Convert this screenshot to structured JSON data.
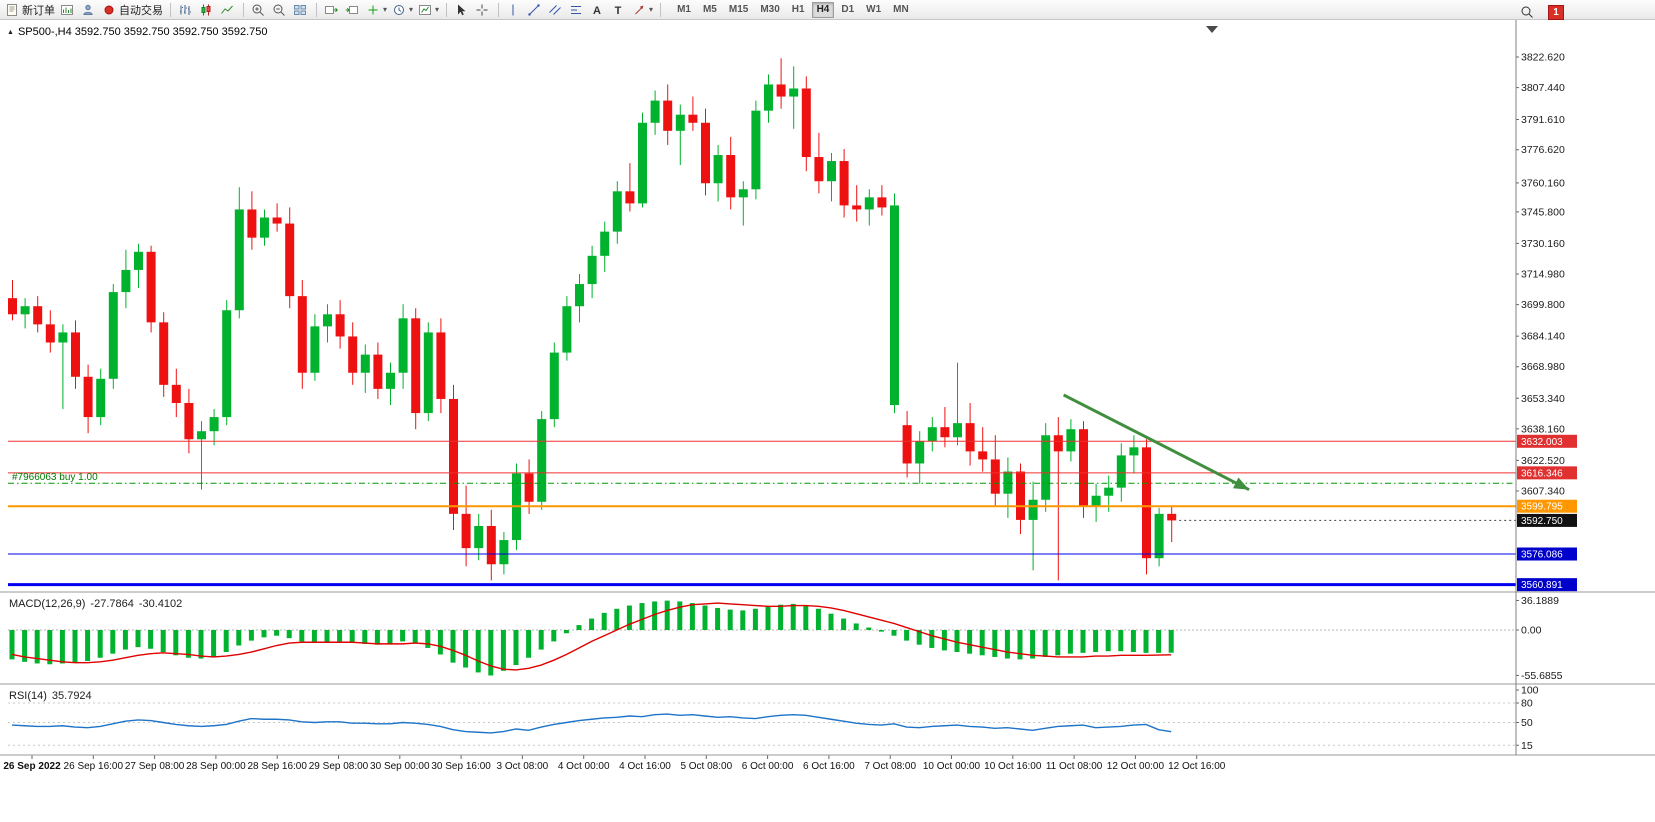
{
  "toolbar": {
    "new_order": "新订单",
    "autotrading": "自动交易",
    "timeframes": [
      "M1",
      "M5",
      "M15",
      "M30",
      "H1",
      "H4",
      "D1",
      "W1",
      "MN"
    ],
    "active_timeframe": "H4",
    "notification_count": "1",
    "icons": {
      "new-order": "order-ticket",
      "charts": "chart-window",
      "experts": "user",
      "autotrading": "red-dot",
      "bar-chart": "bars",
      "candlestick-chart": "candles",
      "line-chart": "polyline",
      "zoom-in": "magnifier-plus",
      "zoom-out": "magnifier-minus",
      "tile-windows": "grid",
      "auto-scroll": "chart-arrow-right",
      "chart-shift": "chart-arrow-left",
      "indicators": "green-plus",
      "periods": "clock",
      "templates": "chart-template",
      "cursor": "pointer-arrow",
      "crosshair": "cross",
      "vertical-line": "vline",
      "trendline": "diagonal-line",
      "channel": "parallel-lines",
      "fibonacci": "fibo-lines",
      "text": "A",
      "text-label": "T",
      "arrows": "arrow",
      "search": "magnifier"
    }
  },
  "chart": {
    "symbol_info": "SP500-,H4 3592.750 3592.750 3592.750 3592.750",
    "trade_label": "#7966063 buy 1.00"
  },
  "chart_data": {
    "type": "candlestick",
    "symbol": "SP500-",
    "timeframe": "H4",
    "colors": {
      "up": "#00B22D",
      "down": "#EE1111",
      "macd": "#00B22D",
      "signal": "#E00000",
      "rsi": "#1E74C8",
      "buy_line": "#009900",
      "arrow": "#3F8F3F"
    },
    "ohlc": [
      [
        3703,
        3712,
        3692,
        3695
      ],
      [
        3695,
        3703,
        3688,
        3699
      ],
      [
        3699,
        3704,
        3686,
        3690
      ],
      [
        3690,
        3697,
        3676,
        3681
      ],
      [
        3681,
        3690,
        3648,
        3686
      ],
      [
        3686,
        3692,
        3658,
        3664
      ],
      [
        3664,
        3670,
        3636,
        3644
      ],
      [
        3644,
        3668,
        3640,
        3663
      ],
      [
        3663,
        3710,
        3658,
        3706
      ],
      [
        3706,
        3727,
        3698,
        3717
      ],
      [
        3717,
        3730,
        3708,
        3726
      ],
      [
        3726,
        3729,
        3686,
        3691
      ],
      [
        3691,
        3696,
        3654,
        3660
      ],
      [
        3660,
        3668,
        3644,
        3651
      ],
      [
        3651,
        3658,
        3626,
        3633
      ],
      [
        3633,
        3642,
        3608,
        3637
      ],
      [
        3637,
        3648,
        3630,
        3644
      ],
      [
        3644,
        3702,
        3640,
        3697
      ],
      [
        3697,
        3758,
        3693,
        3747
      ],
      [
        3747,
        3756,
        3727,
        3733
      ],
      [
        3733,
        3747,
        3729,
        3743
      ],
      [
        3743,
        3750,
        3736,
        3740
      ],
      [
        3740,
        3748,
        3698,
        3704
      ],
      [
        3704,
        3712,
        3658,
        3666
      ],
      [
        3666,
        3695,
        3662,
        3689
      ],
      [
        3689,
        3700,
        3681,
        3695
      ],
      [
        3695,
        3702,
        3678,
        3684
      ],
      [
        3684,
        3691,
        3660,
        3666
      ],
      [
        3666,
        3680,
        3656,
        3675
      ],
      [
        3675,
        3681,
        3653,
        3658
      ],
      [
        3658,
        3671,
        3650,
        3666
      ],
      [
        3666,
        3700,
        3658,
        3693
      ],
      [
        3693,
        3698,
        3638,
        3646
      ],
      [
        3646,
        3691,
        3642,
        3686
      ],
      [
        3686,
        3693,
        3646,
        3653
      ],
      [
        3653,
        3660,
        3588,
        3596
      ],
      [
        3596,
        3610,
        3570,
        3579
      ],
      [
        3579,
        3596,
        3573,
        3590
      ],
      [
        3590,
        3598,
        3563,
        3571
      ],
      [
        3571,
        3587,
        3566,
        3583
      ],
      [
        3583,
        3621,
        3578,
        3616
      ],
      [
        3616,
        3623,
        3596,
        3602
      ],
      [
        3602,
        3647,
        3598,
        3643
      ],
      [
        3643,
        3681,
        3639,
        3676
      ],
      [
        3676,
        3704,
        3672,
        3699
      ],
      [
        3699,
        3715,
        3691,
        3710
      ],
      [
        3710,
        3729,
        3703,
        3724
      ],
      [
        3724,
        3741,
        3716,
        3736
      ],
      [
        3736,
        3761,
        3730,
        3756
      ],
      [
        3756,
        3770,
        3746,
        3750
      ],
      [
        3750,
        3795,
        3748,
        3790
      ],
      [
        3790,
        3806,
        3784,
        3801
      ],
      [
        3801,
        3809,
        3779,
        3786
      ],
      [
        3786,
        3799,
        3769,
        3794
      ],
      [
        3794,
        3803,
        3786,
        3790
      ],
      [
        3790,
        3797,
        3754,
        3760
      ],
      [
        3760,
        3779,
        3751,
        3774
      ],
      [
        3774,
        3783,
        3747,
        3753
      ],
      [
        3753,
        3761,
        3739,
        3757
      ],
      [
        3757,
        3801,
        3752,
        3796
      ],
      [
        3796,
        3814,
        3790,
        3809
      ],
      [
        3809,
        3822,
        3797,
        3803
      ],
      [
        3803,
        3818,
        3787,
        3807
      ],
      [
        3807,
        3813,
        3766,
        3773
      ],
      [
        3773,
        3785,
        3755,
        3761
      ],
      [
        3761,
        3775,
        3751,
        3771
      ],
      [
        3771,
        3777,
        3743,
        3749
      ],
      [
        3749,
        3759,
        3741,
        3747
      ],
      [
        3747,
        3757,
        3739,
        3753
      ],
      [
        3753,
        3759,
        3744,
        3748
      ],
      [
        3650,
        3755,
        3646,
        3749
      ],
      [
        3640,
        3647,
        3614,
        3621
      ],
      [
        3621,
        3637,
        3611,
        3632
      ],
      [
        3632,
        3644,
        3627,
        3639
      ],
      [
        3639,
        3649,
        3629,
        3634
      ],
      [
        3634,
        3671,
        3630,
        3641
      ],
      [
        3641,
        3651,
        3620,
        3627
      ],
      [
        3627,
        3639,
        3617,
        3623
      ],
      [
        3623,
        3635,
        3600,
        3606
      ],
      [
        3606,
        3624,
        3594,
        3617
      ],
      [
        3617,
        3621,
        3586,
        3593
      ],
      [
        3593,
        3612,
        3568,
        3603
      ],
      [
        3603,
        3641,
        3597,
        3635
      ],
      [
        3635,
        3644,
        3563,
        3627
      ],
      [
        3627,
        3643,
        3622,
        3638
      ],
      [
        3638,
        3642,
        3594,
        3600
      ],
      [
        3600,
        3611,
        3592,
        3605
      ],
      [
        3605,
        3615,
        3597,
        3609
      ],
      [
        3609,
        3631,
        3602,
        3625
      ],
      [
        3625,
        3635,
        3616,
        3629
      ],
      [
        3629,
        3633,
        3566,
        3574
      ],
      [
        3574,
        3599,
        3570,
        3596
      ],
      [
        3596,
        3600,
        3582,
        3592.75
      ]
    ],
    "price_axis_labels": [
      "3822.620",
      "3807.440",
      "3791.610",
      "3776.620",
      "3760.160",
      "3745.800",
      "3730.160",
      "3714.980",
      "3699.800",
      "3684.140",
      "3668.980",
      "3653.340",
      "3638.160",
      "3622.520",
      "3607.340"
    ],
    "price_lines": [
      {
        "price": 3632.003,
        "label": "3632.003",
        "color": "#F03030",
        "badge": "#E03030",
        "width": 1,
        "dash": "",
        "name": "resistance-line-1"
      },
      {
        "price": 3616.346,
        "label": "3616.346",
        "color": "#F03030",
        "badge": "#E03030",
        "width": 1,
        "dash": "",
        "name": "resistance-line-2"
      },
      {
        "price": 3611.2,
        "label": "",
        "color": "#009900",
        "badge": "",
        "width": 1,
        "dash": "6 3 1.5 3",
        "name": "buy-order-line"
      },
      {
        "price": 3599.795,
        "label": "3599.795",
        "color": "#FF9800",
        "badge": "#FF9800",
        "width": 2,
        "dash": "",
        "name": "support-line-orange"
      },
      {
        "price": 3592.75,
        "label": "3592.750",
        "color": "#444444",
        "badge": "#111111",
        "width": 1,
        "dash": "2 3",
        "partial": true,
        "name": "current-price-line"
      },
      {
        "price": 3576.086,
        "label": "3576.086",
        "color": "#0000EE",
        "badge": "#0000CC",
        "width": 1,
        "dash": "",
        "name": "support-line-blue-1"
      },
      {
        "price": 3560.891,
        "label": "3560.891",
        "color": "#0000EE",
        "badge": "#0000CC",
        "width": 3,
        "dash": "",
        "name": "support-line-blue-2"
      }
    ],
    "trade_order": {
      "id": "#7966063",
      "side": "buy",
      "volume": "1.00"
    },
    "arrow": {
      "x1f": 0.7,
      "p1": 3655,
      "x2f": 0.823,
      "p2": 3608,
      "width": 3
    },
    "time_axis_labels": [
      "26 Sep 2022",
      "26 Sep 16:00",
      "27 Sep 08:00",
      "28 Sep 00:00",
      "28 Sep 16:00",
      "29 Sep 08:00",
      "30 Sep 00:00",
      "30 Sep 16:00",
      "3 Oct 08:00",
      "4 Oct 00:00",
      "4 Oct 16:00",
      "5 Oct 08:00",
      "6 Oct 00:00",
      "6 Oct 16:00",
      "7 Oct 08:00",
      "10 Oct 00:00",
      "10 Oct 16:00",
      "11 Oct 08:00",
      "12 Oct 00:00",
      "12 Oct 16:00"
    ],
    "macd": {
      "name": "MACD(12,26,9)",
      "value_main": "-27.7864",
      "value_signal": "-30.4102",
      "axis": [
        "36.1889",
        "0.00",
        "-55.6855"
      ],
      "histogram": [
        -36,
        -39,
        -41,
        -42,
        -41,
        -40,
        -38,
        -34,
        -29,
        -24,
        -21,
        -23,
        -27,
        -31,
        -34,
        -35,
        -33,
        -27,
        -19,
        -13,
        -9,
        -7,
        -10,
        -14,
        -16,
        -15,
        -14,
        -15,
        -17,
        -18,
        -17,
        -14,
        -16,
        -22,
        -30,
        -40,
        -46,
        -52,
        -55.7,
        -50,
        -43,
        -34,
        -24,
        -14,
        -4,
        6,
        14,
        21,
        26,
        30,
        33,
        35,
        36,
        35,
        33,
        30,
        27,
        25,
        24,
        26,
        29,
        31,
        32,
        30,
        26,
        20,
        14,
        8,
        3,
        -2,
        -7,
        -13,
        -18,
        -22,
        -25,
        -27,
        -29,
        -31,
        -33,
        -35,
        -36,
        -35,
        -33,
        -31,
        -29,
        -28,
        -27,
        -26,
        -26,
        -27,
        -28,
        -28,
        -27.8
      ],
      "signal": [
        -30,
        -33,
        -35,
        -37,
        -39,
        -40,
        -40,
        -39,
        -37,
        -34,
        -31,
        -29,
        -28,
        -29,
        -30,
        -32,
        -33,
        -32,
        -30,
        -27,
        -23,
        -19,
        -16,
        -15,
        -15,
        -15,
        -15,
        -15,
        -16,
        -17,
        -17,
        -17,
        -16,
        -17,
        -20,
        -25,
        -31,
        -38,
        -44,
        -48,
        -49,
        -47,
        -43,
        -37,
        -30,
        -22,
        -14,
        -7,
        0,
        7,
        13,
        19,
        24,
        28,
        31,
        32,
        33,
        32,
        31,
        30,
        29,
        29,
        30,
        30,
        29,
        27,
        24,
        20,
        16,
        12,
        8,
        3,
        -2,
        -7,
        -11,
        -15,
        -18,
        -21,
        -24,
        -27,
        -29,
        -31,
        -32,
        -33,
        -33,
        -33,
        -32,
        -32,
        -31,
        -31,
        -31,
        -30.7,
        -30.4
      ]
    },
    "rsi": {
      "name": "RSI(14)",
      "value": "35.7924",
      "axis_labels": [
        "100",
        "80",
        "50",
        "15"
      ],
      "levels": [
        80,
        50,
        15
      ],
      "values": [
        46,
        45,
        44,
        44,
        45,
        43,
        42,
        44,
        48,
        52,
        54,
        53,
        50,
        47,
        45,
        44,
        45,
        47,
        52,
        56,
        55,
        55,
        54,
        51,
        50,
        51,
        51,
        49,
        49,
        48,
        48,
        50,
        49,
        47,
        44,
        39,
        36,
        35,
        34,
        36,
        40,
        38,
        43,
        47,
        50,
        53,
        55,
        57,
        58,
        60,
        59,
        62,
        63,
        61,
        62,
        60,
        58,
        59,
        57,
        56,
        59,
        61,
        62,
        61,
        58,
        55,
        52,
        49,
        47,
        46,
        48,
        43,
        42,
        44,
        45,
        46,
        44,
        43,
        41,
        42,
        40,
        38,
        41,
        44,
        45,
        46,
        42,
        43,
        44,
        46,
        47,
        39,
        35.79
      ]
    }
  }
}
